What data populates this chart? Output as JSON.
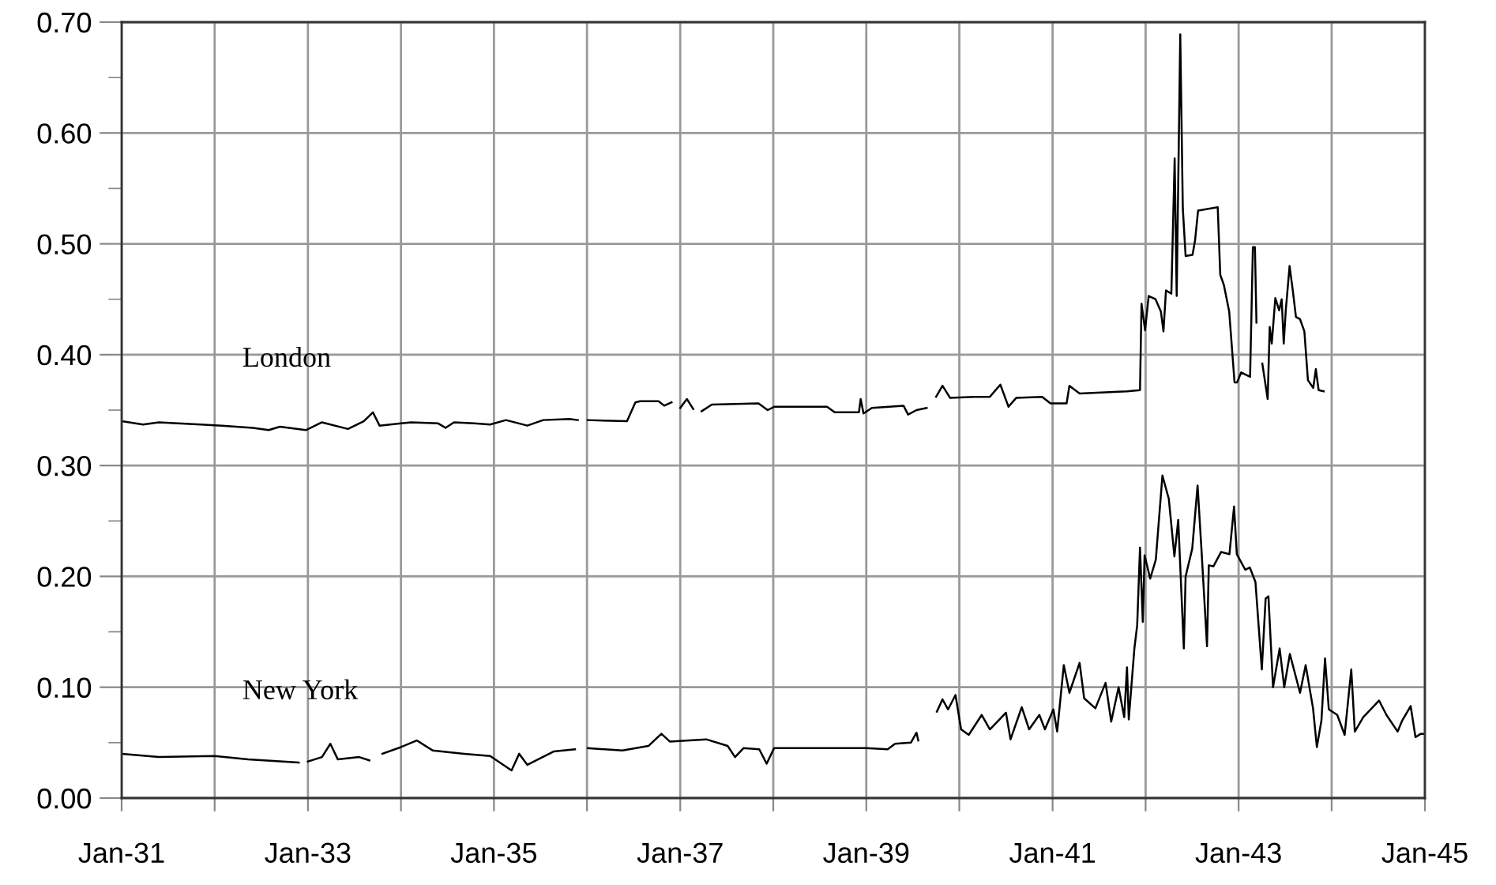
{
  "chart_data": {
    "type": "line",
    "grid": true,
    "marker": "none",
    "line_style": "solid",
    "xlim": [
      "1931-01",
      "1945-01"
    ],
    "xticks": [
      {
        "value": "1931-01",
        "label": "Jan-31"
      },
      {
        "value": "1932-01",
        "label": null
      },
      {
        "value": "1933-01",
        "label": "Jan-33"
      },
      {
        "value": "1934-01",
        "label": null
      },
      {
        "value": "1935-01",
        "label": "Jan-35"
      },
      {
        "value": "1936-01",
        "label": null
      },
      {
        "value": "1937-01",
        "label": "Jan-37"
      },
      {
        "value": "1938-01",
        "label": null
      },
      {
        "value": "1939-01",
        "label": "Jan-39"
      },
      {
        "value": "1940-01",
        "label": null
      },
      {
        "value": "1941-01",
        "label": "Jan-41"
      },
      {
        "value": "1942-01",
        "label": null
      },
      {
        "value": "1943-01",
        "label": "Jan-43"
      },
      {
        "value": "1944-01",
        "label": null
      },
      {
        "value": "1945-01",
        "label": "Jan-45"
      }
    ],
    "ylim": [
      0,
      0.7
    ],
    "yticks": [
      {
        "value": 0,
        "label": "0.00"
      },
      {
        "value": 0.05,
        "label": null
      },
      {
        "value": 0.1,
        "label": "0.10"
      },
      {
        "value": 0.15,
        "label": null
      },
      {
        "value": 0.2,
        "label": "0.20"
      },
      {
        "value": 0.25,
        "label": null
      },
      {
        "value": 0.3,
        "label": "0.30"
      },
      {
        "value": 0.35,
        "label": null
      },
      {
        "value": 0.4,
        "label": "0.40"
      },
      {
        "value": 0.45,
        "label": null
      },
      {
        "value": 0.5,
        "label": "0.50"
      },
      {
        "value": 0.55,
        "label": null
      },
      {
        "value": 0.6,
        "label": "0.60"
      },
      {
        "value": 0.65,
        "label": null
      },
      {
        "value": 0.7,
        "label": "0.70"
      }
    ],
    "series": [
      {
        "name": "London",
        "color": "#000000",
        "x": [
          "1931-01-01",
          "1931-03-26",
          "1931-05-27",
          "1931-11-07",
          "1932-01-30",
          "1932-05-30",
          "1932-07-31",
          "1932-09-13",
          "1932-12-24",
          "1933-02-25",
          "1933-06-07",
          "1933-08-08",
          "1933-09-13",
          "1933-10-09",
          "1934-02-10",
          "1934-05-27",
          "1934-06-25",
          "1934-07-28",
          "1934-10-16",
          "1934-12-17",
          "1935-02-17",
          "1935-05-12",
          "1935-07-13",
          "1935-10-24",
          "1935-11-26",
          "1935-12-14",
          "1936-01-04",
          "1936-06-06",
          "1936-07-09",
          "1936-07-27",
          "1936-10-08",
          "1936-10-30",
          "1936-11-28",
          "1936-12-13",
          "1937-01-01",
          "1937-01-27",
          "1937-02-21",
          "1937-03-08",
          "1937-03-26",
          "1937-05-05",
          "1937-11-04",
          "1937-12-10",
          "1938-01-04",
          "1938-07-31",
          "1938-08-30",
          "1938-12-03",
          "1938-12-10",
          "1938-12-21",
          "1939-01-23",
          "1939-05-27",
          "1939-06-14",
          "1939-07-17",
          "1939-08-26",
          "1939-09-14",
          "1939-10-02",
          "1939-10-27",
          "1939-11-26",
          "1940-02-28",
          "1940-04-30",
          "1940-06-10",
          "1940-07-12",
          "1940-08-11",
          "1940-11-21",
          "1940-12-24",
          "1941-02-25",
          "1941-03-08",
          "1941-04-17",
          "1941-10-20",
          "1941-12-10",
          "1941-12-16",
          "1941-12-30",
          "1942-01-13",
          "1942-02-09",
          "1942-03-02",
          "1942-03-12",
          "1942-03-22",
          "1942-04-12",
          "1942-04-25",
          "1942-05-03",
          "1942-05-17",
          "1942-05-27",
          "1942-06-07",
          "1942-07-04",
          "1942-07-14",
          "1942-07-26",
          "1942-10-11",
          "1942-10-21",
          "1942-11-04",
          "1942-11-25",
          "1942-12-16",
          "1942-12-26",
          "1943-01-11",
          "1943-02-15",
          "1943-02-26",
          "1943-03-06",
          "1943-03-12",
          "1943-03-22",
          "1943-04-04",
          "1943-04-25",
          "1943-05-03",
          "1943-05-11",
          "1943-05-25",
          "1943-06-09",
          "1943-06-19",
          "1943-06-27",
          "1943-07-05",
          "1943-07-20",
          "1943-08-01",
          "1943-08-14",
          "1943-08-30",
          "1943-09-16",
          "1943-09-30",
          "1943-10-21",
          "1943-10-31",
          "1943-11-11",
          "1943-12-01"
        ],
        "values": [
          0.34,
          0.337,
          0.339,
          0.337,
          0.336,
          0.334,
          0.332,
          0.335,
          0.332,
          0.339,
          0.333,
          0.34,
          0.348,
          0.336,
          0.339,
          0.338,
          0.334,
          0.339,
          0.338,
          0.337,
          0.341,
          0.336,
          0.341,
          0.342,
          0.341,
          null,
          0.341,
          0.34,
          0.357,
          0.358,
          0.358,
          0.354,
          0.357,
          null,
          0.352,
          0.36,
          0.351,
          null,
          0.349,
          0.355,
          0.356,
          0.35,
          0.353,
          0.353,
          0.348,
          0.348,
          0.36,
          0.347,
          0.352,
          0.354,
          0.346,
          0.35,
          0.352,
          null,
          0.362,
          0.372,
          0.361,
          0.362,
          0.362,
          0.373,
          0.353,
          0.361,
          0.362,
          0.356,
          0.356,
          0.372,
          0.365,
          0.367,
          0.368,
          0.446,
          0.422,
          0.453,
          0.45,
          0.439,
          0.421,
          0.458,
          0.455,
          0.577,
          0.453,
          0.689,
          0.532,
          0.489,
          0.49,
          0.503,
          0.53,
          0.533,
          0.472,
          0.463,
          0.439,
          0.375,
          0.375,
          0.384,
          0.38,
          0.497,
          0.497,
          0.429,
          null,
          0.392,
          0.36,
          0.425,
          0.41,
          0.451,
          0.44,
          0.45,
          0.41,
          0.44,
          0.48,
          0.459,
          0.434,
          0.432,
          0.421,
          0.377,
          0.37,
          0.387,
          0.368,
          0.367
        ]
      },
      {
        "name": "New York",
        "color": "#000000",
        "x": [
          "1931-01-01",
          "1931-05-27",
          "1932-01-01",
          "1932-05-11",
          "1932-11-26",
          "1932-12-14",
          "1933-01-01",
          "1933-02-25",
          "1933-03-30",
          "1933-04-28",
          "1933-07-21",
          "1933-08-30",
          "1933-09-24",
          "1933-10-20",
          "1934-01-01",
          "1934-03-04",
          "1934-05-05",
          "1934-09-06",
          "1934-12-17",
          "1935-03-11",
          "1935-04-10",
          "1935-05-12",
          "1935-08-23",
          "1935-11-15",
          "1935-12-10",
          "1936-01-04",
          "1936-05-19",
          "1936-08-29",
          "1936-10-19",
          "1936-11-21",
          "1937-04-13",
          "1937-07-06",
          "1937-08-04",
          "1937-09-06",
          "1937-11-07",
          "1937-12-06",
          "1938-01-04",
          "1938-04-17",
          "1939-01-01",
          "1939-03-26",
          "1939-04-24",
          "1939-06-25",
          "1939-07-17",
          "1939-07-24",
          "1939-08-30",
          "1939-10-05",
          "1939-10-27",
          "1939-11-18",
          "1939-12-17",
          "1940-01-08",
          "1940-02-07",
          "1940-03-29",
          "1940-04-30",
          "1940-07-02",
          "1940-07-20",
          "1940-09-02",
          "1940-10-01",
          "1940-11-10",
          "1940-12-02",
          "1941-01-04",
          "1941-01-19",
          "1941-02-14",
          "1941-03-08",
          "1941-04-17",
          "1941-05-05",
          "1941-06-18",
          "1941-07-28",
          "1941-08-19",
          "1941-09-17",
          "1941-10-09",
          "1941-10-20",
          "1941-10-27",
          "1941-11-18",
          "1941-11-29",
          "1941-12-10",
          "1941-12-21",
          "1941-12-28",
          "1942-01-19",
          "1942-02-10",
          "1942-03-08",
          "1942-04-02",
          "1942-04-24",
          "1942-05-09",
          "1942-05-31",
          "1942-06-07",
          "1942-07-03",
          "1942-07-24",
          "1942-08-08",
          "1942-08-30",
          "1942-09-06",
          "1942-09-24",
          "1942-10-24",
          "1942-11-26",
          "1942-12-14",
          "1942-12-25",
          "1943-01-27",
          "1943-02-14",
          "1943-03-08",
          "1943-04-02",
          "1943-04-17",
          "1943-04-28",
          "1943-05-16",
          "1943-06-11",
          "1943-06-29",
          "1943-07-21",
          "1943-08-30",
          "1943-09-21",
          "1943-10-20",
          "1943-11-04",
          "1943-11-22",
          "1943-12-06",
          "1943-12-21",
          "1944-01-23",
          "1944-02-21",
          "1944-03-18",
          "1944-04-01",
          "1944-05-04",
          "1944-07-05",
          "1944-08-03",
          "1944-09-16",
          "1944-10-04",
          "1944-11-06",
          "1944-11-25",
          "1944-12-16",
          "1945-01-01"
        ],
        "values": [
          0.04,
          0.037,
          0.038,
          0.035,
          0.032,
          null,
          0.033,
          0.037,
          0.049,
          0.035,
          0.037,
          0.034,
          null,
          0.04,
          0.046,
          0.052,
          0.043,
          0.04,
          0.038,
          0.025,
          0.04,
          0.03,
          0.042,
          0.044,
          null,
          0.045,
          0.043,
          0.047,
          0.058,
          0.051,
          0.053,
          0.047,
          0.037,
          0.045,
          0.044,
          0.031,
          0.045,
          0.045,
          0.045,
          0.044,
          0.049,
          0.05,
          0.059,
          0.052,
          null,
          0.078,
          0.089,
          0.08,
          0.093,
          0.062,
          0.057,
          0.075,
          0.062,
          0.077,
          0.053,
          0.082,
          0.062,
          0.075,
          0.062,
          0.08,
          0.06,
          0.12,
          0.095,
          0.122,
          0.09,
          0.081,
          0.104,
          0.069,
          0.1,
          0.073,
          0.118,
          0.071,
          0.135,
          0.156,
          0.226,
          0.159,
          0.219,
          0.198,
          0.215,
          0.291,
          0.27,
          0.218,
          0.251,
          0.135,
          0.2,
          0.225,
          0.282,
          0.225,
          0.137,
          0.21,
          0.209,
          0.222,
          0.22,
          0.263,
          0.22,
          0.206,
          0.208,
          0.195,
          0.116,
          0.18,
          0.182,
          0.1,
          0.135,
          0.1,
          0.13,
          0.095,
          0.12,
          0.081,
          0.046,
          0.07,
          0.126,
          0.08,
          0.075,
          0.057,
          0.116,
          0.06,
          0.073,
          0.088,
          0.075,
          0.06,
          0.07,
          0.083,
          0.055,
          0.058,
          0.058
        ]
      }
    ]
  }
}
